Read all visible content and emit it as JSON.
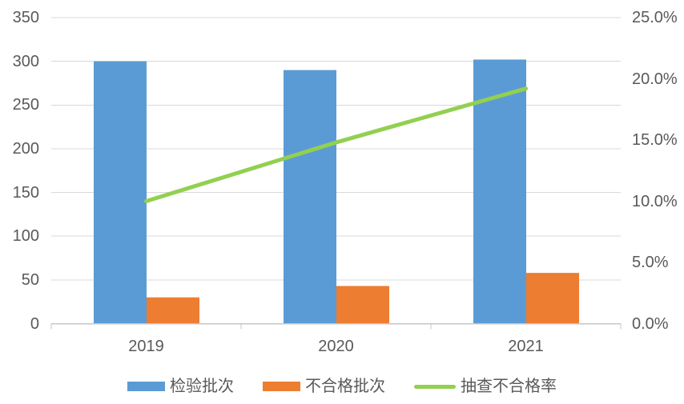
{
  "chart_data": {
    "type": "combo-bar-line",
    "title": "",
    "categories": [
      "2019",
      "2020",
      "2021"
    ],
    "series": [
      {
        "name": "检验批次",
        "type": "bar",
        "axis": "left",
        "color": "#5B9BD5",
        "values": [
          300,
          290,
          302
        ]
      },
      {
        "name": "不合格批次",
        "type": "bar",
        "axis": "left",
        "color": "#ED7D31",
        "values": [
          30,
          43,
          58
        ]
      },
      {
        "name": "抽查不合格率",
        "type": "line",
        "axis": "right",
        "color": "#92D050",
        "values": [
          10.0,
          14.8,
          19.2
        ],
        "unit": "%"
      }
    ],
    "left_axis": {
      "range": [
        0,
        350
      ],
      "ticks": [
        0,
        50,
        100,
        150,
        200,
        250,
        300,
        350
      ],
      "labels": [
        "0",
        "50",
        "100",
        "150",
        "200",
        "250",
        "300",
        "350"
      ]
    },
    "right_axis": {
      "range": [
        0,
        25
      ],
      "ticks": [
        0,
        5,
        10,
        15,
        20,
        25
      ],
      "labels": [
        "0.0%",
        "5.0%",
        "10.0%",
        "15.0%",
        "20.0%",
        "25.0%"
      ]
    },
    "grid": true,
    "legend_position": "bottom",
    "colors": {
      "gridline": "#D9D9D9",
      "axis_line": "#C6C6C6",
      "text": "#595959",
      "background": "#FFFFFF"
    }
  }
}
